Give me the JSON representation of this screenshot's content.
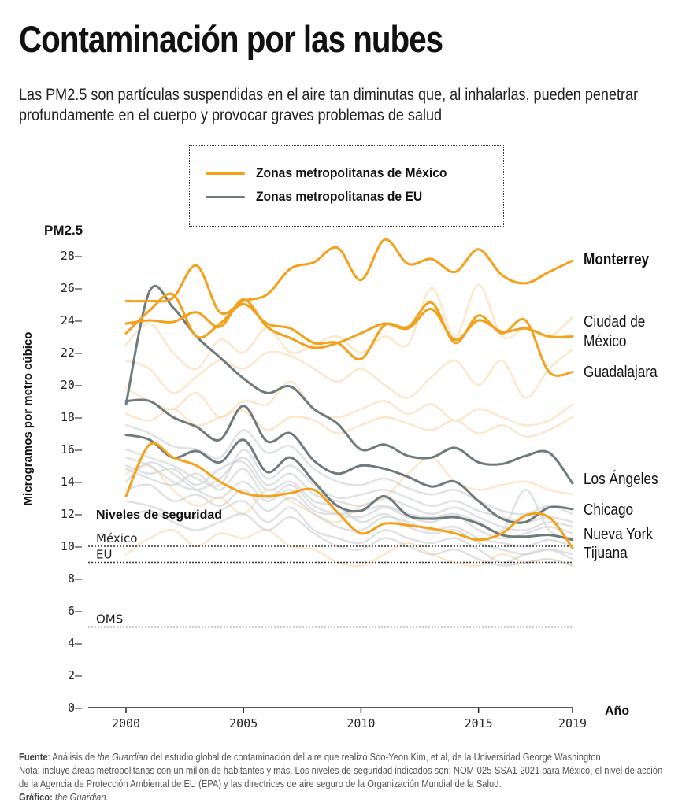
{
  "header": {
    "title": "Contaminación por las nubes",
    "subtitle": "Las PM2.5 son partículas suspendidas en el aire tan diminutas que, al inhalarlas, pueden penetrar profundamente en el cuerpo y provocar graves problemas de salud"
  },
  "legend": {
    "items": [
      {
        "label": "Zonas metropolitanas de México",
        "color": "#F5A01A"
      },
      {
        "label": "Zonas metropolitanas de EU",
        "color": "#6E7B7C"
      }
    ]
  },
  "colors": {
    "mexico": "#F5A01A",
    "eu": "#6E7B7C",
    "mexico_background": "#FBDDB5",
    "eu_background": "#D2D4D6",
    "threshold": "#333333",
    "axis": "#222222"
  },
  "chart_data": {
    "type": "line",
    "title": "Contaminación por las nubes",
    "ylabel_top": "PM2.5",
    "ylabel": "Microgramos por metro cúbico",
    "xlabel": "Año",
    "ylim": [
      0,
      28
    ],
    "xlim": [
      1998.3,
      2019
    ],
    "yticks": [
      0,
      2,
      4,
      6,
      8,
      10,
      12,
      14,
      16,
      18,
      20,
      22,
      24,
      26,
      28
    ],
    "xticks": [
      2000,
      2005,
      2010,
      2015,
      2019
    ],
    "grid": false,
    "legend_position": "top-center",
    "x": [
      2000,
      2001,
      2002,
      2003,
      2004,
      2005,
      2006,
      2007,
      2008,
      2009,
      2010,
      2011,
      2012,
      2013,
      2014,
      2015,
      2016,
      2017,
      2018,
      2019
    ],
    "series": [
      {
        "name": "Monterrey",
        "group": "mexico",
        "label": "Monterrey",
        "values": [
          25.2,
          25.2,
          25.4,
          27.4,
          24.5,
          25.2,
          25.6,
          27.2,
          27.6,
          28.5,
          26.5,
          29.0,
          27.5,
          27.8,
          27.0,
          28.4,
          26.8,
          26.3,
          27.0,
          27.7
        ]
      },
      {
        "name": "Ciudad de México",
        "group": "mexico",
        "label": "Ciudad de México",
        "values": [
          23.8,
          24.0,
          23.9,
          24.5,
          23.6,
          25.3,
          23.6,
          22.9,
          22.3,
          22.6,
          23.2,
          23.8,
          23.5,
          24.7,
          22.8,
          24.0,
          23.3,
          23.5,
          23.0,
          23.0
        ]
      },
      {
        "name": "Guadalajara",
        "group": "mexico",
        "label": "Guadalajara",
        "values": [
          23.2,
          24.6,
          25.6,
          23.0,
          23.8,
          25.0,
          23.8,
          23.5,
          22.6,
          22.6,
          21.6,
          23.7,
          23.6,
          25.1,
          22.6,
          24.3,
          23.2,
          24.0,
          20.8,
          20.8
        ]
      },
      {
        "name": "Tijuana",
        "group": "mexico",
        "label": "Tijuana",
        "values": [
          13.1,
          16.3,
          15.5,
          15.0,
          14.0,
          13.3,
          13.1,
          13.3,
          13.5,
          12.1,
          10.8,
          11.4,
          11.3,
          11.1,
          10.8,
          10.4,
          10.8,
          11.9,
          11.8,
          9.9
        ]
      },
      {
        "name": "Los Ángeles",
        "group": "eu",
        "label": "Los Ángeles",
        "values": [
          18.8,
          25.8,
          24.8,
          23.0,
          21.7,
          20.4,
          19.5,
          19.9,
          18.5,
          17.6,
          16.0,
          16.3,
          15.6,
          15.5,
          16.1,
          15.2,
          15.1,
          15.6,
          15.8,
          13.9
        ]
      },
      {
        "name": "Chicago",
        "group": "eu",
        "label": "Chicago",
        "values": [
          19.0,
          19.0,
          18.0,
          17.4,
          16.6,
          18.7,
          16.5,
          17.0,
          15.3,
          14.5,
          15.0,
          14.8,
          14.3,
          13.7,
          14.0,
          12.8,
          11.7,
          11.5,
          12.4,
          12.3
        ]
      },
      {
        "name": "Nueva York",
        "group": "eu",
        "label": "Nueva York",
        "values": [
          16.9,
          16.6,
          15.5,
          15.9,
          15.2,
          16.6,
          14.6,
          15.5,
          14.0,
          12.5,
          12.2,
          13.1,
          11.9,
          11.7,
          11.8,
          11.4,
          10.7,
          10.6,
          10.7,
          10.4
        ]
      }
    ],
    "background_series": [
      {
        "group": "mexico",
        "values": [
          22.5,
          23.8,
          22.0,
          21.0,
          22.8,
          22.0,
          23.5,
          22.0,
          22.5,
          23.0,
          22.0,
          23.0,
          22.5,
          26.0,
          23.0,
          26.2,
          23.0,
          23.5,
          23.0,
          24.2
        ]
      },
      {
        "group": "mexico",
        "values": [
          21.5,
          21.0,
          19.5,
          20.5,
          21.5,
          21.0,
          22.0,
          21.8,
          21.0,
          20.2,
          21.0,
          20.0,
          19.2,
          20.5,
          21.5,
          20.0,
          21.5,
          19.2,
          21.0,
          22.2
        ]
      },
      {
        "group": "mexico",
        "values": [
          19.8,
          19.0,
          18.5,
          19.5,
          18.0,
          19.0,
          18.8,
          20.2,
          18.5,
          18.0,
          18.5,
          19.0,
          18.2,
          18.8,
          17.8,
          18.5,
          18.0,
          17.5,
          17.8,
          18.8
        ]
      },
      {
        "group": "mexico",
        "values": [
          18.2,
          17.8,
          18.5,
          17.5,
          18.0,
          18.4,
          17.2,
          18.0,
          17.8,
          17.0,
          17.5,
          18.0,
          17.6,
          17.2,
          17.8,
          17.0,
          17.5,
          16.8,
          17.2,
          18.0
        ]
      },
      {
        "group": "mexico",
        "values": [
          14.5,
          15.0,
          13.5,
          12.5,
          13.0,
          12.0,
          13.5,
          12.8,
          12.0,
          11.5,
          12.5,
          13.0,
          14.5,
          15.5,
          14.0,
          13.5,
          13.8,
          14.0,
          13.5,
          13.2
        ]
      },
      {
        "group": "mexico",
        "values": [
          9.5,
          10.5,
          11.0,
          10.0,
          10.8,
          10.5,
          11.0,
          10.0,
          9.8,
          9.0,
          8.8,
          9.5,
          10.2,
          9.5,
          9.0,
          8.8,
          9.5,
          9.0,
          9.2,
          8.8
        ]
      },
      {
        "group": "eu",
        "values": [
          15.5,
          15.0,
          14.0,
          13.5,
          14.2,
          15.5,
          13.8,
          14.5,
          13.2,
          12.8,
          12.5,
          13.0,
          12.5,
          12.0,
          12.4,
          11.8,
          11.2,
          11.0,
          11.5,
          11.2
        ]
      },
      {
        "group": "eu",
        "values": [
          14.8,
          14.2,
          13.8,
          14.5,
          13.5,
          14.8,
          13.0,
          13.8,
          12.5,
          12.0,
          11.8,
          12.4,
          11.8,
          11.5,
          11.9,
          11.0,
          10.5,
          10.8,
          11.2,
          10.8
        ]
      },
      {
        "group": "eu",
        "values": [
          16.0,
          15.5,
          15.0,
          14.2,
          13.8,
          16.0,
          14.2,
          15.0,
          13.8,
          13.0,
          13.2,
          13.5,
          13.0,
          12.5,
          12.8,
          12.2,
          11.8,
          11.5,
          11.8,
          11.5
        ]
      },
      {
        "group": "eu",
        "values": [
          13.5,
          13.8,
          12.8,
          13.2,
          12.5,
          13.5,
          12.2,
          13.0,
          12.0,
          11.2,
          11.0,
          11.8,
          11.5,
          11.0,
          11.2,
          10.5,
          10.2,
          10.0,
          10.4,
          10.0
        ]
      },
      {
        "group": "eu",
        "values": [
          15.0,
          14.5,
          14.8,
          13.8,
          14.8,
          15.2,
          13.5,
          14.0,
          12.8,
          12.5,
          11.5,
          12.0,
          11.2,
          10.8,
          11.0,
          10.2,
          9.8,
          9.5,
          9.8,
          9.5
        ]
      },
      {
        "group": "eu",
        "values": [
          12.8,
          12.5,
          12.0,
          11.8,
          12.2,
          12.8,
          11.5,
          12.4,
          11.0,
          10.5,
          10.2,
          11.0,
          10.5,
          10.2,
          10.5,
          9.8,
          9.0,
          9.5,
          9.8,
          9.2
        ]
      },
      {
        "group": "eu",
        "values": [
          17.5,
          17.0,
          16.2,
          16.0,
          15.5,
          17.2,
          15.8,
          16.2,
          14.8,
          14.0,
          13.8,
          14.2,
          13.6,
          13.2,
          13.5,
          12.8,
          12.2,
          12.0,
          12.5,
          12.0
        ]
      },
      {
        "group": "eu",
        "values": [
          14.0,
          15.2,
          14.5,
          13.5,
          13.0,
          14.0,
          12.8,
          13.5,
          12.2,
          12.0,
          12.2,
          12.5,
          12.0,
          11.8,
          12.0,
          11.5,
          11.0,
          13.5,
          11.0,
          10.5
        ]
      },
      {
        "group": "eu",
        "values": [
          11.8,
          12.2,
          11.5,
          11.0,
          11.5,
          12.0,
          11.0,
          11.8,
          10.8,
          10.0,
          9.8,
          10.5,
          10.0,
          9.5,
          9.8,
          9.2,
          8.8,
          9.0,
          9.2,
          8.8
        ]
      }
    ],
    "thresholds": [
      {
        "label": "México",
        "value": 10
      },
      {
        "label": "EU",
        "value": 9
      },
      {
        "label": "OMS",
        "value": 5
      }
    ],
    "thresholds_title": "Niveles de seguridad"
  },
  "footer": {
    "source_label": "Fuente",
    "source_pre": ": Análisis de ",
    "source_italic": "the Guardian",
    "source_post": " del estudio global de contaminación del aire que realizó Soo-Yeon Kim, et al, de la Universidad George Washington.",
    "note": "Nota: incluye áreas metropolitanas con un millón de habitantes y más. Los niveles de seguridad indicados son: NOM-025-SSA1-2021 para México, el nivel de acción de la Agencia de Protección Ambiental de EU (EPA) y las directrices de aire seguro de la Organización Mundial de la Salud.",
    "graphic_label": "Gráfico:",
    "graphic_credit": "the Guardian."
  }
}
